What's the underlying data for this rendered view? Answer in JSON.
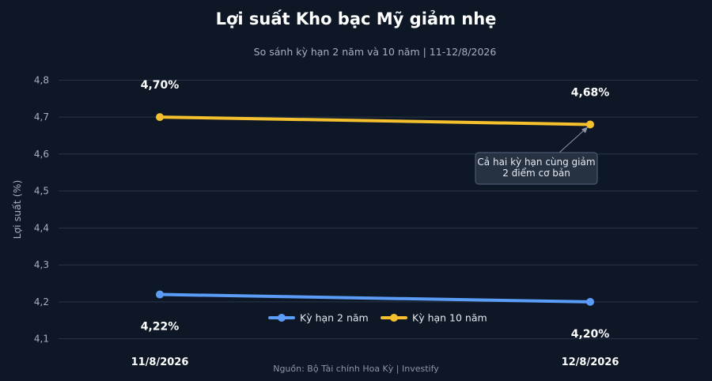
{
  "chart_data": {
    "type": "line",
    "title": "Lợi suất Kho bạc Mỹ giảm nhẹ",
    "subtitle": "So sánh kỳ hạn 2 năm và 10 năm | 11-12/8/2026",
    "ylabel": "Lợi suất (%)",
    "xlabel": "",
    "categories": [
      "11/8/2026",
      "12/8/2026"
    ],
    "ylim": [
      4.08,
      4.82
    ],
    "yticks": [
      "4,1",
      "4,2",
      "4,3",
      "4,4",
      "4,5",
      "4,6",
      "4,7",
      "4,8"
    ],
    "ytick_values": [
      4.1,
      4.2,
      4.3,
      4.4,
      4.5,
      4.6,
      4.7,
      4.8
    ],
    "grid": true,
    "legend_position": "bottom-center",
    "series": [
      {
        "name": "Kỳ hạn 2 năm",
        "color": "#5b9cf6",
        "values": [
          4.22,
          4.2
        ],
        "labels": [
          "4,22%",
          "4,20%"
        ]
      },
      {
        "name": "Kỳ hạn 10 năm",
        "color": "#f5c02e",
        "values": [
          4.7,
          4.68
        ],
        "labels": [
          "4,70%",
          "4,68%"
        ]
      }
    ],
    "annotation": {
      "lines": [
        "Cả hai kỳ hạn cùng giảm",
        "2 điểm cơ bản"
      ],
      "series_index": 1,
      "point_index": 1
    },
    "source": "Nguồn: Bộ Tài chính Hoa Kỳ | Investify"
  }
}
